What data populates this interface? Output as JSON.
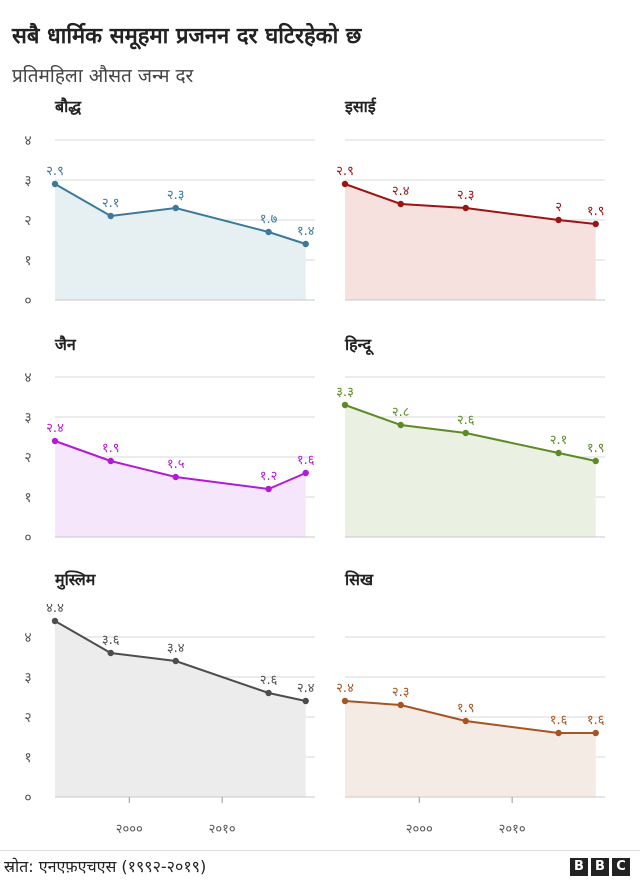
{
  "title": "सबै धार्मिक समूहमा प्रजनन दर घटिरहेको छ",
  "subtitle": "प्रतिमहिला औसत जन्म दर",
  "source": "स्रोत: एनएफ़एचएस (१९९२-२०१९)",
  "brand": {
    "letters": [
      "B",
      "B",
      "C"
    ]
  },
  "chart_data": {
    "type": "line",
    "y_tick_labels": [
      "०",
      "१",
      "२",
      "३",
      "४"
    ],
    "y_ticks": [
      0,
      1,
      2,
      3,
      4
    ],
    "x_tick_labels": [
      "२०००",
      "२०१०"
    ],
    "x_ticks": [
      2000,
      2010
    ],
    "xlim": [
      1992,
      2020
    ],
    "ylim": [
      0,
      4
    ],
    "panels": [
      {
        "name": "बौद्ध",
        "color": "#3b7a99",
        "fill": "#e6eff2",
        "x": [
          1992,
          1998,
          2005,
          2015,
          2019
        ],
        "values": [
          2.9,
          2.1,
          2.3,
          1.7,
          1.4
        ],
        "labels": [
          "२.९",
          "२.१",
          "२.३",
          "१.७",
          "१.४"
        ]
      },
      {
        "name": "इसाई",
        "color": "#9b1414",
        "fill": "#f7e1df",
        "x": [
          1992,
          1998,
          2005,
          2015,
          2019
        ],
        "values": [
          2.9,
          2.4,
          2.3,
          2.0,
          1.9
        ],
        "labels": [
          "२.९",
          "२.४",
          "२.३",
          "२",
          "१.९"
        ]
      },
      {
        "name": "जैन",
        "color": "#b21ad6",
        "fill": "#f5e6fb",
        "x": [
          1992,
          1998,
          2005,
          2015,
          2019
        ],
        "values": [
          2.4,
          1.9,
          1.5,
          1.2,
          1.6
        ],
        "labels": [
          "२.४",
          "१.९",
          "१.५",
          "१.२",
          "१.६"
        ]
      },
      {
        "name": "हिन्दू",
        "color": "#5d8a26",
        "fill": "#eaf0e2",
        "x": [
          1992,
          1998,
          2005,
          2015,
          2019
        ],
        "values": [
          3.3,
          2.8,
          2.6,
          2.1,
          1.9
        ],
        "labels": [
          "३.३",
          "२.८",
          "२.६",
          "२.१",
          "१.९"
        ]
      },
      {
        "name": "मुस्लिम",
        "color": "#4d4d4d",
        "fill": "#ececec",
        "x": [
          1992,
          1998,
          2005,
          2015,
          2019
        ],
        "values": [
          4.4,
          3.6,
          3.4,
          2.6,
          2.4
        ],
        "labels": [
          "४.४",
          "३.६",
          "३.४",
          "२.६",
          "२.४"
        ]
      },
      {
        "name": "सिख",
        "color": "#a65522",
        "fill": "#f3ebe4",
        "x": [
          1992,
          1998,
          2005,
          2015,
          2019
        ],
        "values": [
          2.4,
          2.3,
          1.9,
          1.6,
          1.6
        ],
        "labels": [
          "२.४",
          "२.३",
          "१.९",
          "१.६",
          "१.६"
        ]
      }
    ]
  }
}
